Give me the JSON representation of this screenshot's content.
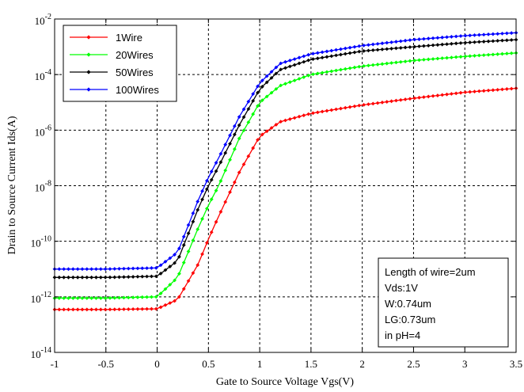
{
  "chart_data": {
    "type": "line",
    "xlabel": "Gate to Source Voltage Vgs(V)",
    "ylabel": "Drain to Source Current Ids(A)",
    "xlim": [
      -1,
      3.5
    ],
    "ylim": [
      1e-14,
      0.01
    ],
    "yscale": "log",
    "grid": true,
    "legend_position": "top-left",
    "x_ticks": [
      "-1",
      "-0.5",
      "0",
      "0.5",
      "1",
      "1.5",
      "2",
      "2.5",
      "3",
      "3.5"
    ],
    "y_ticks": [
      {
        "base": "10",
        "exp": "-14"
      },
      {
        "base": "10",
        "exp": "-12"
      },
      {
        "base": "10",
        "exp": "-10"
      },
      {
        "base": "10",
        "exp": "-8"
      },
      {
        "base": "10",
        "exp": "-6"
      },
      {
        "base": "10",
        "exp": "-4"
      },
      {
        "base": "10",
        "exp": "-2"
      }
    ],
    "x": [
      -1.0,
      -0.5,
      0.0,
      0.2,
      0.4,
      0.5,
      0.6,
      0.8,
      1.0,
      1.2,
      1.5,
      2.0,
      2.5,
      3.0,
      3.5
    ],
    "series": [
      {
        "name": "1Wire",
        "color": "#ff0000",
        "values": [
          3.5e-13,
          3.5e-13,
          3.7e-13,
          8e-13,
          1.5e-11,
          1.2e-10,
          8e-10,
          3e-08,
          6e-07,
          2e-06,
          4e-06,
          8e-06,
          1.4e-05,
          2.3e-05,
          3.2e-05
        ]
      },
      {
        "name": "20Wires",
        "color": "#00ff00",
        "values": [
          9e-13,
          9e-13,
          1e-12,
          5e-12,
          3e-10,
          2e-09,
          1e-08,
          5e-07,
          1e-05,
          4e-05,
          0.0001,
          0.0002,
          0.00032,
          0.00045,
          0.0006
        ]
      },
      {
        "name": "50Wires",
        "color": "#000000",
        "values": [
          5e-12,
          5e-12,
          5.5e-12,
          2e-11,
          1.5e-09,
          1e-08,
          5e-08,
          1.5e-06,
          3e-05,
          0.00015,
          0.00035,
          0.0007,
          0.001,
          0.0014,
          0.0018
        ]
      },
      {
        "name": "100Wires",
        "color": "#0000ff",
        "values": [
          1e-11,
          1e-11,
          1.1e-11,
          4e-11,
          3e-09,
          2e-08,
          1e-07,
          3e-06,
          5e-05,
          0.00025,
          0.00055,
          0.0011,
          0.0018,
          0.0025,
          0.0032
        ]
      }
    ],
    "annotation_lines": [
      "Length of wire=2um",
      "Vds:1V",
      "W:0.74um",
      "LG:0.73um",
      "in pH=4"
    ]
  }
}
